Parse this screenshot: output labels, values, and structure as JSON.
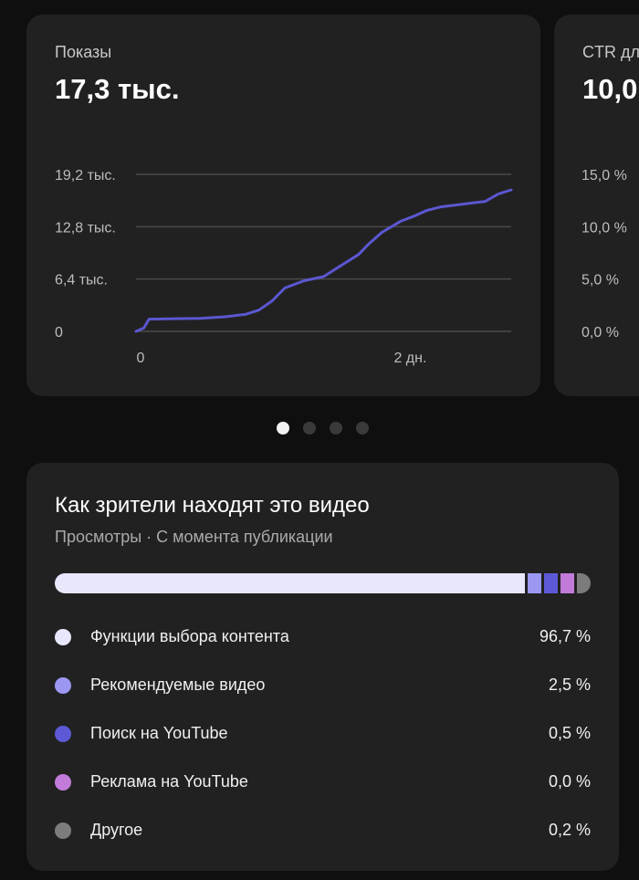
{
  "impressions_card": {
    "label": "Показы",
    "value": "17,3 тыс.",
    "chart_data": {
      "type": "line",
      "title": "",
      "xlabel": "",
      "ylabel": "",
      "x_ticks": [
        "0",
        "2 дн."
      ],
      "y_ticks": [
        "0",
        "6,4 тыс.",
        "12,8 тыс.",
        "19,2 тыс."
      ],
      "ylim": [
        0,
        19200
      ],
      "xlim_days": [
        0,
        2.9
      ],
      "series": [
        {
          "color": "#5b57d1",
          "x": [
            0,
            0.06,
            0.1,
            0.3,
            0.5,
            0.7,
            0.85,
            0.95,
            1.05,
            1.15,
            1.3,
            1.45,
            1.6,
            1.72,
            1.8,
            1.9,
            2.05,
            2.15,
            2.25,
            2.35,
            2.5,
            2.7,
            2.8,
            2.9
          ],
          "y": [
            0,
            400,
            1500,
            1550,
            1580,
            1800,
            2100,
            2600,
            3700,
            5300,
            6200,
            6700,
            8200,
            9400,
            10700,
            12100,
            13500,
            14100,
            14800,
            15200,
            15500,
            15900,
            16800,
            17300
          ]
        }
      ]
    }
  },
  "ctr_card": {
    "label": "CTR для",
    "value": "10,0",
    "y_ticks": [
      "0,0 %",
      "5,0 %",
      "10,0 %",
      "15,0 %"
    ]
  },
  "pagination": {
    "count": 4,
    "active_index": 0
  },
  "traffic_sources": {
    "title": "Как зрители находят это видео",
    "subtitle": "Просмотры · С момента публикации",
    "items": [
      {
        "label": "Функции выбора контента",
        "value": "96,7 %",
        "share": 96.7,
        "color": "#e8e8fd"
      },
      {
        "label": "Рекомендуемые видео",
        "value": "2,5 %",
        "share": 2.5,
        "color": "#9c98f2"
      },
      {
        "label": "Поиск на YouTube",
        "value": "0,5 %",
        "share": 0.5,
        "color": "#5d59d6"
      },
      {
        "label": "Реклама на YouTube",
        "value": "0,0 %",
        "share": 0.0,
        "color": "#c37bd9"
      },
      {
        "label": "Другое",
        "value": "0,2 %",
        "share": 0.2,
        "color": "#7c7c7c"
      }
    ]
  }
}
